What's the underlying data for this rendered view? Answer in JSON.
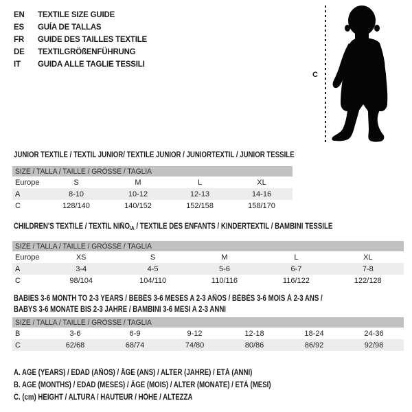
{
  "languages": [
    {
      "code": "EN",
      "title": "TEXTILE SIZE GUIDE"
    },
    {
      "code": "ES",
      "title": "GUÍA DE TALLAS"
    },
    {
      "code": "FR",
      "title": "GUIDE DES TAILLES TEXTILE"
    },
    {
      "code": "DE",
      "title": "TEXTILGRÖßENFÜHRUNG"
    },
    {
      "code": "IT",
      "title": "GUIDA ALLE TAGLIE TESSILI"
    }
  ],
  "figure": {
    "label": "C",
    "icon": "toddler-silhouette-icon"
  },
  "sections": [
    {
      "name": "junior-textile",
      "heading_lines": [
        [
          {
            "text": "JUNIOR TEXTILE / TEXTIL JUNIOR/ TEXTILE JUNIOR / JUNIORTEXTIL / JUNIOR TESSILE"
          }
        ]
      ],
      "size_label": "SIZE / TALLA / TAILLE / GRÖSSE / TAGLIA",
      "header_row": {
        "label": "Europe",
        "values": [
          "S",
          "M",
          "L",
          "XL"
        ]
      },
      "rows": [
        {
          "label": "A",
          "values": [
            "8-10",
            "10-12",
            "12-13",
            "14-16"
          ],
          "shaded": true
        },
        {
          "label": "C",
          "values": [
            "128/140",
            "140/152",
            "152/158",
            "158/170"
          ],
          "shaded": false
        }
      ]
    },
    {
      "name": "childrens-textile",
      "heading_lines": [
        [
          {
            "text": "CHILDREN'S TEXTILE / TEXTIL NIÑO"
          },
          {
            "text": "/A",
            "sub": true
          },
          {
            "text": " / TEXTILE DES ENFANTS / KINDERTEXTIL / BAMBINI TESSILE"
          }
        ]
      ],
      "size_label": "SIZE / TALLA / TAILLE / GRÖSSE / TAGLIA",
      "header_row": {
        "label": "Europe",
        "values": [
          "XS",
          "S",
          "M",
          "L",
          "XL"
        ]
      },
      "rows": [
        {
          "label": "A",
          "values": [
            "3-4",
            "4-5",
            "5-6",
            "6-7",
            "7-8"
          ],
          "shaded": true
        },
        {
          "label": "C",
          "values": [
            "98/104",
            "104/110",
            "110/116",
            "116/122",
            "122/128"
          ],
          "shaded": false
        }
      ]
    },
    {
      "name": "babies-textile",
      "heading_lines": [
        [
          {
            "text": "BABIES 3-6 MONTH TO 2-3 YEARS / BEBÉS 3-6 MESES A 2-3 AÑOS / BÉBÉS 3-6 MOIS À 2-3 ANS /"
          }
        ],
        [
          {
            "text": "BABYS 3-6 MONATE BIS 2-3 JAHRE / BAMBINI 3-6 MESI A 2-3 ANNI"
          }
        ]
      ],
      "size_label": "SIZE / TALLA / TAILLE / GRÖSSE / TAGLIA",
      "header_row": null,
      "rows": [
        {
          "label": "B",
          "values": [
            "3-6",
            "6-9",
            "9-12",
            "12-18",
            "18-24",
            "24-36"
          ],
          "shaded": false
        },
        {
          "label": "C",
          "values": [
            "62/68",
            "68/74",
            "74/80",
            "80/86",
            "86/92",
            "92/98"
          ],
          "shaded": true
        }
      ]
    }
  ],
  "footnotes": [
    "A. AGE (YEARS) / EDAD (AÑOS) / ÂGE (ANS) / ALTER (JAHRE) / ETÀ (ANNI)",
    "B. AGE (MONTHS) / EDAD (MESES) / ÂGE (MOIS) / ALTER (MONATE) / ETÀ (MESI)",
    "C. (cm) HEIGHT / ALTURA / HAUTEUR / HÖHE / ALTEZZA"
  ],
  "colors": {
    "header_bar": "#c1c1c1",
    "row_shaded": "#ededed",
    "silhouette": "#050505",
    "text": "#1b1b1b"
  }
}
